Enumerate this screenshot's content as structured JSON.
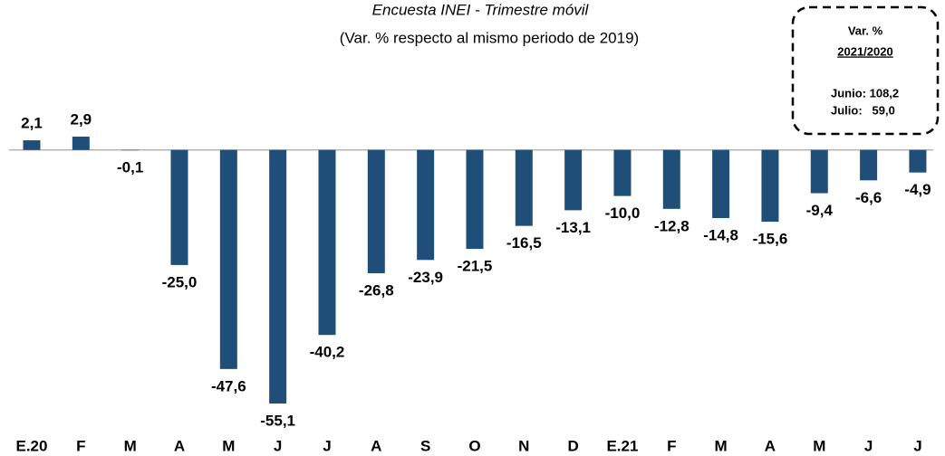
{
  "chart_data": {
    "type": "bar",
    "title": "Encuesta INEI - Trimestre móvil",
    "subtitle": "(Var. % respecto al mismo periodo de 2019)",
    "categories": [
      "E.20",
      "F",
      "M",
      "A",
      "M",
      "J",
      "J",
      "A",
      "S",
      "O",
      "N",
      "D",
      "E.21",
      "F",
      "M",
      "A",
      "M",
      "J",
      "J"
    ],
    "values": [
      2.1,
      2.9,
      -0.1,
      -25.0,
      -47.6,
      -55.1,
      -40.2,
      -26.8,
      -23.9,
      -21.5,
      -16.5,
      -13.1,
      -10.0,
      -12.8,
      -14.8,
      -15.6,
      -9.4,
      -6.6,
      -4.9
    ],
    "value_labels": [
      "2,1",
      "2,9",
      "-0,1",
      "-25,0",
      "-47,6",
      "-55,1",
      "-40,2",
      "-26,8",
      "-23,9",
      "-21,5",
      "-16,5",
      "-13,1",
      "-10,0",
      "-12,8",
      "-14,8",
      "-15,6",
      "-9,4",
      "-6,6",
      "-4,9"
    ],
    "color": "#1f4e79",
    "annotations": [
      "Var. %",
      "2021/2020",
      "Junio: 108,2",
      "Julio:   59,0"
    ]
  }
}
